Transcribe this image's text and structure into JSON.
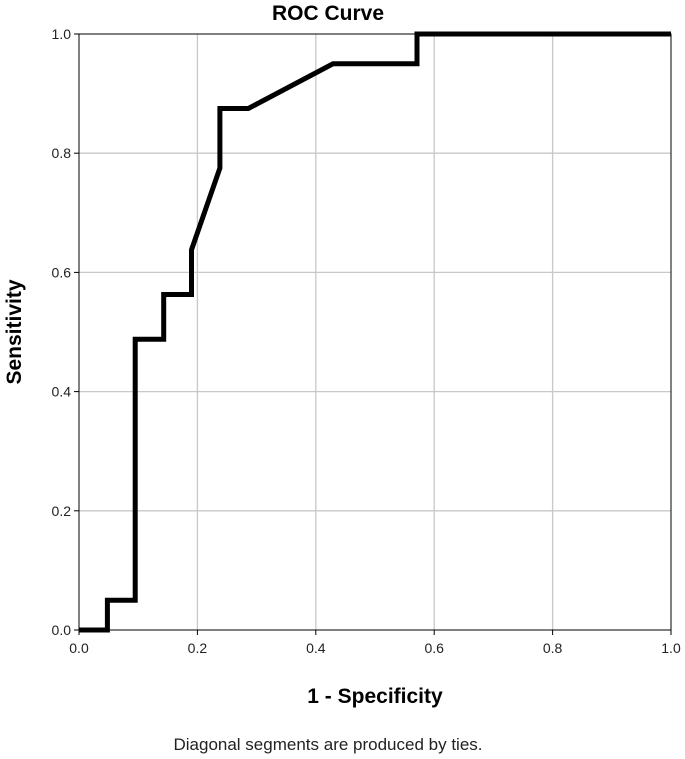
{
  "chart_data": {
    "type": "line",
    "title": "ROC Curve",
    "xlabel": "1 - Specificity",
    "ylabel": "Sensitivity",
    "footnote": "Diagonal segments are produced by ties.",
    "xlim": [
      0,
      1
    ],
    "ylim": [
      0,
      1
    ],
    "x_ticks": [
      "0.0",
      "0.2",
      "0.4",
      "0.6",
      "0.8",
      "1.0"
    ],
    "y_ticks": [
      "0.0",
      "0.2",
      "0.4",
      "0.6",
      "0.8",
      "1.0"
    ],
    "grid": true,
    "series": [
      {
        "color": "#000000",
        "points": [
          [
            0.0,
            0.0
          ],
          [
            0.048,
            0.0
          ],
          [
            0.048,
            0.05
          ],
          [
            0.095,
            0.05
          ],
          [
            0.095,
            0.488
          ],
          [
            0.143,
            0.488
          ],
          [
            0.143,
            0.563
          ],
          [
            0.19,
            0.563
          ],
          [
            0.19,
            0.638
          ],
          [
            0.238,
            0.775
          ],
          [
            0.238,
            0.875
          ],
          [
            0.286,
            0.875
          ],
          [
            0.429,
            0.95
          ],
          [
            0.571,
            0.95
          ],
          [
            0.571,
            1.0
          ],
          [
            1.0,
            1.0
          ]
        ]
      }
    ]
  }
}
